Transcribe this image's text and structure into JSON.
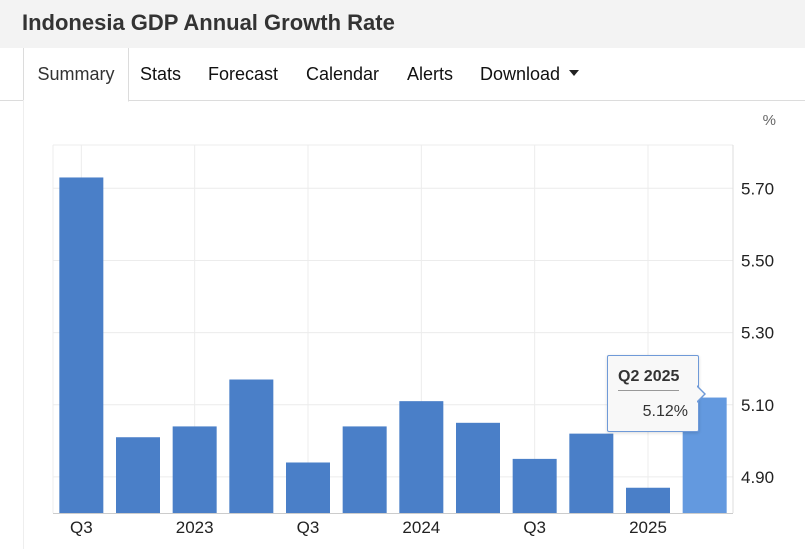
{
  "page": {
    "title": "Indonesia GDP Annual Growth Rate"
  },
  "tabs": [
    {
      "label": "Summary",
      "active": true
    },
    {
      "label": "Stats"
    },
    {
      "label": "Forecast"
    },
    {
      "label": "Calendar"
    },
    {
      "label": "Alerts"
    },
    {
      "label": "Download",
      "has_dropdown": true
    }
  ],
  "tooltip": {
    "period": "Q2 2025",
    "value": "5.12%"
  },
  "colors": {
    "bar": "#4a7fc8",
    "bar_highlight": "#6399df",
    "grid": "#ececec"
  },
  "chart_data": {
    "type": "bar",
    "title": "Indonesia GDP Annual Growth Rate",
    "unit": "%",
    "categories": [
      "Q3 2022",
      "Q4 2022",
      "Q1 2023",
      "Q2 2023",
      "Q3 2023",
      "Q4 2023",
      "Q1 2024",
      "Q2 2024",
      "Q3 2024",
      "Q4 2024",
      "Q1 2025",
      "Q2 2025"
    ],
    "values": [
      5.73,
      5.01,
      5.04,
      5.17,
      4.94,
      5.04,
      5.11,
      5.05,
      4.95,
      5.02,
      4.87,
      5.12
    ],
    "x_tick_labels": [
      "Q3",
      "",
      "2023",
      "",
      "Q3",
      "",
      "2024",
      "",
      "Q3",
      "",
      "2025",
      ""
    ],
    "y_ticks": [
      4.9,
      5.1,
      5.3,
      5.5,
      5.7
    ],
    "y_tick_labels": [
      "4.90",
      "5.10",
      "5.30",
      "5.50",
      "5.70"
    ],
    "ylim": [
      4.8,
      5.82
    ],
    "grid": true,
    "highlighted_index": 11
  }
}
